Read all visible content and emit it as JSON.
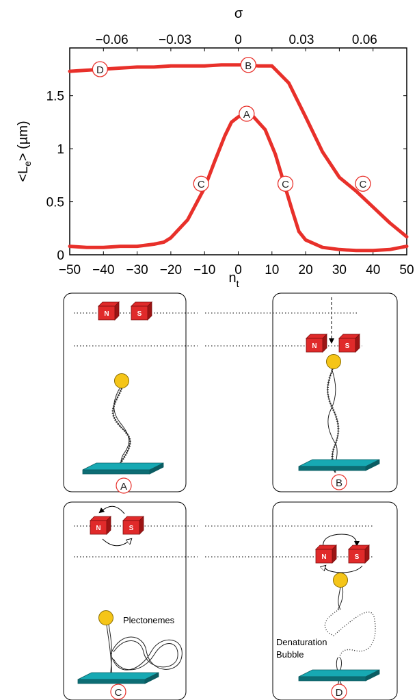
{
  "chart_data": {
    "type": "line",
    "xlabel_main": "n",
    "xlabel_sub": "t",
    "ylabel": "<L",
    "ylabel_sub": "e",
    "ylabel_unit": "> (µm)",
    "top_axis_label": "σ",
    "xlim": [
      -50,
      50
    ],
    "ylim": [
      0,
      1.95
    ],
    "x_ticks": [
      "−50",
      "−40",
      "−30",
      "−20",
      "−10",
      "0",
      "10",
      "20",
      "30",
      "40",
      "50"
    ],
    "x_tick_values": [
      -50,
      -40,
      -30,
      -20,
      -10,
      0,
      10,
      20,
      30,
      40,
      50
    ],
    "y_ticks": [
      "0",
      "0.5",
      "1",
      "1.5"
    ],
    "y_tick_values": [
      0,
      0.5,
      1,
      1.5
    ],
    "top_ticks": [
      "−0.06",
      "−0.03",
      "0",
      "0.03",
      "0.06"
    ],
    "top_tick_values": [
      -0.06,
      -0.03,
      0,
      0.03,
      0.06
    ],
    "color": "#e8302a",
    "series": [
      {
        "x": [
          -50,
          -45,
          -40,
          -35,
          -30,
          -25,
          -20,
          -15,
          -10,
          -5,
          0,
          3,
          6,
          10,
          15,
          20,
          25,
          30,
          35,
          40,
          45,
          50
        ],
        "values": [
          1.73,
          1.74,
          1.75,
          1.76,
          1.77,
          1.77,
          1.78,
          1.78,
          1.78,
          1.79,
          1.79,
          1.79,
          1.78,
          1.78,
          1.62,
          1.3,
          0.97,
          0.73,
          0.6,
          0.45,
          0.3,
          0.17
        ]
      },
      {
        "x": [
          -50,
          -45,
          -40,
          -35,
          -30,
          -25,
          -22,
          -20,
          -15,
          -10,
          -7,
          -4,
          -2,
          0,
          2,
          4,
          8,
          11,
          14,
          16,
          18,
          20,
          25,
          30,
          35,
          40,
          45,
          50
        ],
        "values": [
          0.08,
          0.07,
          0.07,
          0.08,
          0.08,
          0.1,
          0.12,
          0.16,
          0.33,
          0.63,
          0.88,
          1.12,
          1.25,
          1.3,
          1.33,
          1.32,
          1.18,
          0.95,
          0.63,
          0.42,
          0.22,
          0.14,
          0.07,
          0.05,
          0.04,
          0.04,
          0.05,
          0.08
        ]
      }
    ],
    "points": [
      {
        "label": "D",
        "x": -41,
        "y": 1.75
      },
      {
        "label": "B",
        "x": 3,
        "y": 1.79
      },
      {
        "label": "A",
        "x": 2.5,
        "y": 1.33
      },
      {
        "label": "C",
        "x": -11,
        "y": 0.67
      },
      {
        "label": "C",
        "x": 14,
        "y": 0.67
      },
      {
        "label": "C",
        "x": 37,
        "y": 0.67
      }
    ]
  },
  "panels": {
    "A": {
      "label": "A"
    },
    "B": {
      "label": "B"
    },
    "C": {
      "label": "C",
      "note": "Plectonemes"
    },
    "D": {
      "label": "D",
      "note_line1": "Denaturation",
      "note_line2": "Bubble"
    }
  },
  "magnet": {
    "north": "N",
    "south": "S"
  },
  "colors": {
    "curve": "#e8302a",
    "magnet": "#e02a2a",
    "magnet_dark": "#9c1414",
    "bead": "#f5c518",
    "surface": "#17a9b3",
    "surface_dark": "#0d6d74"
  }
}
